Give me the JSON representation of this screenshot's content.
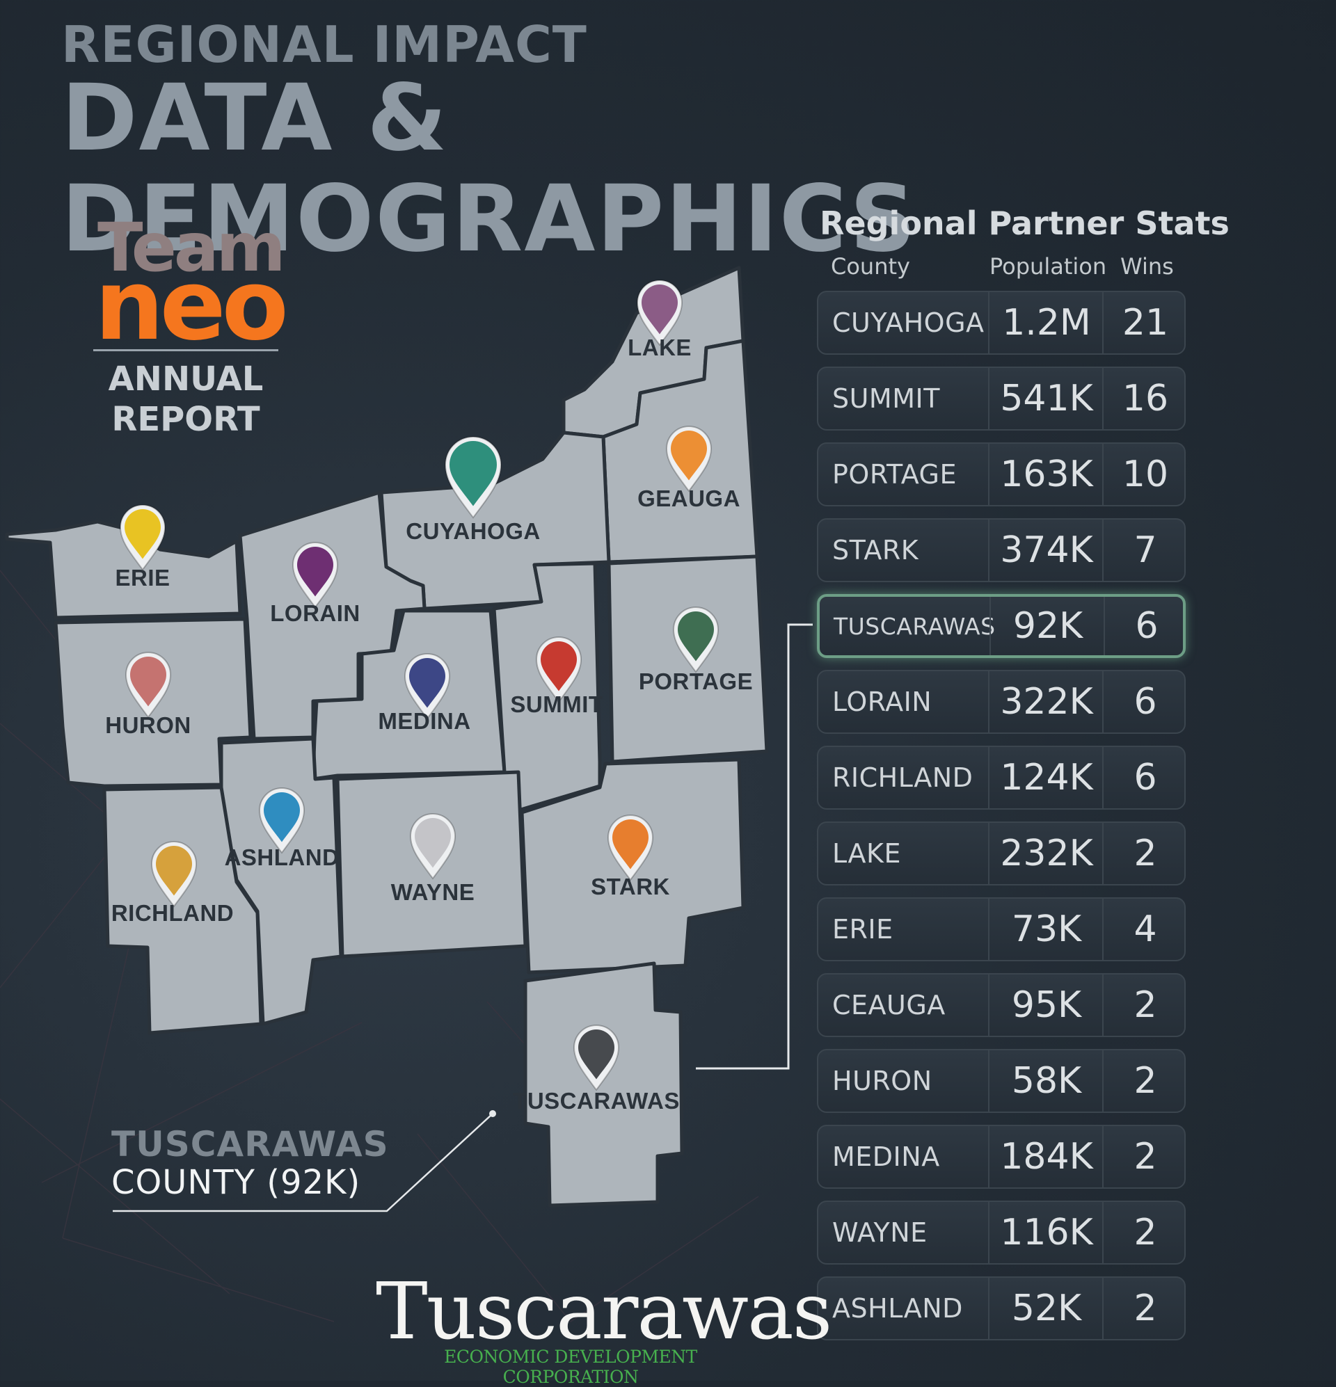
{
  "header": {
    "kicker": "REGIONAL IMPACT",
    "title": "DATA & DEMOGRAPHICS"
  },
  "logo": {
    "team": "Team",
    "neo": "neo",
    "subtitle_line1": "ANNUAL",
    "subtitle_line2": "REPORT",
    "colors": {
      "team": "#8f7f80",
      "neo": "#f5761e"
    }
  },
  "map": {
    "counties": [
      {
        "name": "LAKE",
        "pin_color": "#8b5c86"
      },
      {
        "name": "GEAUGA",
        "pin_color": "#ec8f34"
      },
      {
        "name": "CUYAHOGA",
        "pin_color": "#2e8f7c"
      },
      {
        "name": "ERIE",
        "pin_color": "#e8c323"
      },
      {
        "name": "LORAIN",
        "pin_color": "#6e2f72"
      },
      {
        "name": "HURON",
        "pin_color": "#c57370"
      },
      {
        "name": "MEDINA",
        "pin_color": "#3d4786"
      },
      {
        "name": "SUMMIT",
        "pin_color": "#c63a30"
      },
      {
        "name": "PORTAGE",
        "pin_color": "#3f6e52"
      },
      {
        "name": "ASHLAND",
        "pin_color": "#2f8dc0"
      },
      {
        "name": "RICHLAND",
        "pin_color": "#d6a13c"
      },
      {
        "name": "WAYNE",
        "pin_color": "#c4c4c8"
      },
      {
        "name": "STARK",
        "pin_color": "#e77e2e"
      },
      {
        "name": "TUSCARAWAS",
        "pin_color": "#474a4e"
      }
    ]
  },
  "callout": {
    "name": "TUSCARAWAS",
    "population": "COUNTY (92K)"
  },
  "stats": {
    "title": "Regional Partner Stats",
    "columns": {
      "county": "County",
      "population": "Population",
      "wins": "Wins"
    },
    "highlight_color": "#6d9e86",
    "rows": [
      {
        "county": "CUYAHOGA",
        "population": "1.2M",
        "wins": "21"
      },
      {
        "county": "SUMMIT",
        "population": "541K",
        "wins": "16"
      },
      {
        "county": "PORTAGE",
        "population": "163K",
        "wins": "10"
      },
      {
        "county": "STARK",
        "population": "374K",
        "wins": "7"
      },
      {
        "county": "TUSCARAWAS",
        "population": "92K",
        "wins": "6"
      },
      {
        "county": "LORAIN",
        "population": "322K",
        "wins": "6"
      },
      {
        "county": "RICHLAND",
        "population": "124K",
        "wins": "6"
      },
      {
        "county": "LAKE",
        "population": "232K",
        "wins": "2"
      },
      {
        "county": "ERIE",
        "population": "73K",
        "wins": "4"
      },
      {
        "county": "CEAUGA",
        "population": "95K",
        "wins": "2"
      },
      {
        "county": "HURON",
        "population": "58K",
        "wins": "2"
      },
      {
        "county": "MEDINA",
        "population": "184K",
        "wins": "2"
      },
      {
        "county": "WAYNE",
        "population": "116K",
        "wins": "2"
      },
      {
        "county": "ASHLAND",
        "population": "52K",
        "wins": "2"
      }
    ]
  },
  "footer_logo": {
    "wordmark": "Tuscarawas",
    "subtitle": "ECONOMIC DEVELOPMENT CORPORATION",
    "colors": {
      "wordmark": "#f4f4f2",
      "accent": "#47b04e"
    }
  }
}
